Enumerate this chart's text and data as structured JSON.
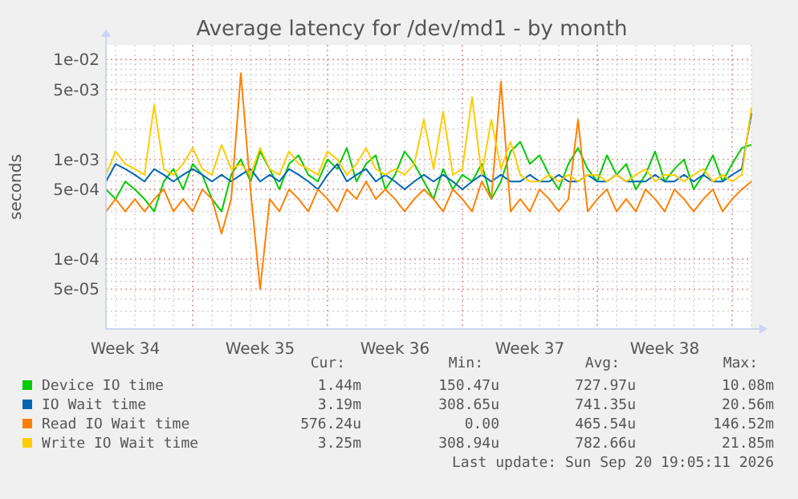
{
  "chart_data": {
    "type": "line",
    "title": "Average latency for /dev/md1 - by month",
    "ylabel": "seconds",
    "log": "y",
    "grid": true,
    "legend": "bottom",
    "marker": "none",
    "line_style": "solid",
    "xlim": [
      "2026-08-19T12:00",
      "2026-09-22T00:00"
    ],
    "xticks": [
      {
        "value": "2026-08-20T12:00",
        "label": "Week 34"
      },
      {
        "value": "2026-08-27T12:00",
        "label": "Week 35"
      },
      {
        "value": "2026-09-03T12:00",
        "label": "Week 36"
      },
      {
        "value": "2026-09-10T12:00",
        "label": "Week 37"
      },
      {
        "value": "2026-09-17T12:00",
        "label": "Week 38"
      },
      {
        "value": "2026-08-24",
        "label": null
      },
      {
        "value": "2026-08-31",
        "label": null
      },
      {
        "value": "2026-09-07",
        "label": null
      },
      {
        "value": "2026-09-14",
        "label": null
      },
      {
        "value": "2026-09-21",
        "label": null
      }
    ],
    "ylim": [
      2e-05,
      0.014
    ],
    "yticks": [
      {
        "value": 5e-05,
        "label": "5e-05"
      },
      {
        "value": 0.0001,
        "label": "1e-04"
      },
      {
        "value": 0.0005,
        "label": "5e-04"
      },
      {
        "value": 0.001,
        "label": "1e-03"
      },
      {
        "value": 0.005,
        "label": "5e-03"
      },
      {
        "value": 0.01,
        "label": "1e-02"
      }
    ],
    "x": [
      "2026-08-19T12:00",
      "2026-08-20T00:00",
      "2026-08-20T12:00",
      "2026-08-21T00:00",
      "2026-08-21T12:00",
      "2026-08-22T00:00",
      "2026-08-22T12:00",
      "2026-08-23T00:00",
      "2026-08-23T12:00",
      "2026-08-24T00:00",
      "2026-08-24T12:00",
      "2026-08-25T00:00",
      "2026-08-25T12:00",
      "2026-08-26T00:00",
      "2026-08-26T12:00",
      "2026-08-27T00:00",
      "2026-08-27T12:00",
      "2026-08-28T00:00",
      "2026-08-28T12:00",
      "2026-08-29T00:00",
      "2026-08-29T12:00",
      "2026-08-30T00:00",
      "2026-08-30T12:00",
      "2026-08-31T00:00",
      "2026-08-31T12:00",
      "2026-09-01T00:00",
      "2026-09-01T12:00",
      "2026-09-02T00:00",
      "2026-09-02T12:00",
      "2026-09-03T00:00",
      "2026-09-03T12:00",
      "2026-09-04T00:00",
      "2026-09-04T12:00",
      "2026-09-05T00:00",
      "2026-09-05T12:00",
      "2026-09-06T00:00",
      "2026-09-06T12:00",
      "2026-09-07T00:00",
      "2026-09-07T12:00",
      "2026-09-08T00:00",
      "2026-09-08T12:00",
      "2026-09-09T00:00",
      "2026-09-09T12:00",
      "2026-09-10T00:00",
      "2026-09-10T12:00",
      "2026-09-11T00:00",
      "2026-09-11T12:00",
      "2026-09-12T00:00",
      "2026-09-12T12:00",
      "2026-09-13T00:00",
      "2026-09-13T12:00",
      "2026-09-14T00:00",
      "2026-09-14T12:00",
      "2026-09-15T00:00",
      "2026-09-15T12:00",
      "2026-09-16T00:00",
      "2026-09-16T12:00",
      "2026-09-17T00:00",
      "2026-09-17T12:00",
      "2026-09-18T00:00",
      "2026-09-18T12:00",
      "2026-09-19T00:00",
      "2026-09-19T12:00",
      "2026-09-20T00:00",
      "2026-09-20T12:00",
      "2026-09-21T00:00",
      "2026-09-21T12:00",
      "2026-09-22T00:00"
    ],
    "series": [
      {
        "name": "Device IO time",
        "color": "#00cc00",
        "values": [
          0.0005,
          0.0004,
          0.0006,
          0.0005,
          0.0004,
          0.0003,
          0.0006,
          0.0008,
          0.0005,
          0.0009,
          0.0007,
          0.0004,
          0.0003,
          0.0007,
          0.001,
          0.0006,
          0.0012,
          0.0008,
          0.0005,
          0.0009,
          0.0011,
          0.0007,
          0.0006,
          0.001,
          0.0008,
          0.0013,
          0.0006,
          0.0009,
          0.0011,
          0.0005,
          0.0007,
          0.0012,
          0.0009,
          0.0006,
          0.0004,
          0.0008,
          0.0005,
          0.0007,
          0.0006,
          0.0009,
          0.0004,
          0.0006,
          0.0012,
          0.0015,
          0.0009,
          0.0011,
          0.0007,
          0.0005,
          0.0009,
          0.0013,
          0.0008,
          0.0006,
          0.0011,
          0.0007,
          0.0009,
          0.0005,
          0.0007,
          0.0012,
          0.0006,
          0.0008,
          0.001,
          0.0005,
          0.0007,
          0.0011,
          0.0006,
          0.0009,
          0.0013,
          0.0014
        ]
      },
      {
        "name": "IO Wait time",
        "color": "#0066b3",
        "values": [
          0.0006,
          0.0009,
          0.0008,
          0.0007,
          0.0006,
          0.0008,
          0.0007,
          0.0006,
          0.0007,
          0.0008,
          0.0007,
          0.0006,
          0.0007,
          0.0006,
          0.0007,
          0.0008,
          0.0006,
          0.0007,
          0.0006,
          0.0008,
          0.0007,
          0.0006,
          0.0005,
          0.0007,
          0.0009,
          0.0006,
          0.0007,
          0.0008,
          0.0006,
          0.0007,
          0.0006,
          0.0005,
          0.0006,
          0.0007,
          0.0006,
          0.0007,
          0.0006,
          0.0005,
          0.0006,
          0.0007,
          0.0006,
          0.0007,
          0.0006,
          0.0006,
          0.0007,
          0.0006,
          0.0006,
          0.0007,
          0.0006,
          0.0006,
          0.0007,
          0.0006,
          0.0006,
          0.0007,
          0.0006,
          0.0006,
          0.0006,
          0.0007,
          0.0006,
          0.0006,
          0.0007,
          0.0006,
          0.0007,
          0.0006,
          0.0006,
          0.0007,
          0.0008,
          0.0029
        ]
      },
      {
        "name": "Read IO Wait time",
        "color": "#ff8000",
        "values": [
          0.0003,
          0.0004,
          0.0003,
          0.0004,
          0.0003,
          0.0004,
          0.0005,
          0.0003,
          0.0004,
          0.0003,
          0.0005,
          0.0004,
          0.00018,
          0.0004,
          0.0073,
          0.0005,
          5e-05,
          0.0004,
          0.0003,
          0.0005,
          0.0004,
          0.0003,
          0.0005,
          0.0004,
          0.0003,
          0.0005,
          0.0004,
          0.0006,
          0.0004,
          0.0005,
          0.0004,
          0.0003,
          0.0004,
          0.0005,
          0.0004,
          0.0003,
          0.0005,
          0.0004,
          0.0003,
          0.0006,
          0.0004,
          0.006,
          0.0003,
          0.0004,
          0.0003,
          0.0005,
          0.0004,
          0.0003,
          0.0004,
          0.0025,
          0.0003,
          0.0004,
          0.0005,
          0.0003,
          0.0004,
          0.0003,
          0.0005,
          0.0004,
          0.0003,
          0.0005,
          0.0004,
          0.0003,
          0.0004,
          0.0005,
          0.0003,
          0.0004,
          0.0005,
          0.0006
        ]
      },
      {
        "name": "Write IO Wait time",
        "color": "#ffcc00",
        "values": [
          0.0007,
          0.0012,
          0.0009,
          0.0008,
          0.0007,
          0.0035,
          0.0008,
          0.0007,
          0.0009,
          0.0013,
          0.0008,
          0.0007,
          0.0014,
          0.0008,
          0.0009,
          0.0007,
          0.0013,
          0.0008,
          0.0007,
          0.0012,
          0.0009,
          0.0008,
          0.0007,
          0.0012,
          0.001,
          0.0007,
          0.0009,
          0.0013,
          0.0008,
          0.0007,
          0.0008,
          0.0007,
          0.0009,
          0.0025,
          0.0008,
          0.003,
          0.0007,
          0.0008,
          0.0042,
          0.0007,
          0.0025,
          0.0008,
          0.0015,
          0.0007,
          0.0006,
          0.0006,
          0.0007,
          0.0006,
          0.0007,
          0.0006,
          0.0007,
          0.0007,
          0.0006,
          0.0007,
          0.0006,
          0.0007,
          0.0008,
          0.0006,
          0.0007,
          0.0007,
          0.0006,
          0.0007,
          0.0008,
          0.0006,
          0.0007,
          0.0006,
          0.0007,
          0.0033
        ]
      }
    ],
    "annotations": [
      "Cur:",
      "Min:",
      "Avg:",
      "Max:",
      "1.44m",
      "150.47u",
      "727.97u",
      "10.08m",
      "3.19m",
      "308.65u",
      "741.35u",
      "20.56m",
      "576.24u",
      "0.00",
      "465.54u",
      "146.52m",
      "3.25m",
      "308.94u",
      "782.66u",
      "21.85m",
      "Last update: Sun Sep 20 19:05:11 2026"
    ]
  }
}
